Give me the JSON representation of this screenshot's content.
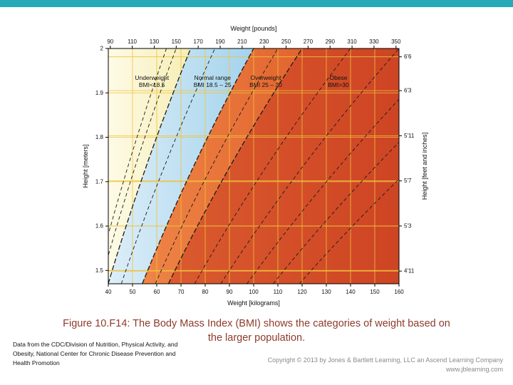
{
  "slide": {
    "top_bar_color": "#29a8b8",
    "caption_color": "#8d3b2b",
    "caption_line1": "Figure 10.F14: The Body Mass Index (BMI) shows the categories of weight based on",
    "caption_line2": "the larger population.",
    "source_text": "Data from the CDC/Division of Nutrition, Physical Activity, and Obesity, National Center for Chronic Disease Prevention and Health Promotion",
    "copyright_line1": "Copyright © 2013 by Jones & Bartlett Learning, LLC an Ascend Learning Company",
    "copyright_line2": "www.jblearning.com"
  },
  "chart_data": {
    "type": "area",
    "x_axis_top": {
      "label": "Weight [pounds]",
      "ticks": [
        90,
        110,
        130,
        150,
        170,
        190,
        210,
        230,
        250,
        270,
        290,
        310,
        330,
        350
      ]
    },
    "x_axis_bottom": {
      "label": "Weight [kilograms]",
      "range": [
        40,
        160
      ],
      "ticks": [
        40,
        50,
        60,
        70,
        80,
        90,
        100,
        110,
        120,
        130,
        140,
        150,
        160
      ]
    },
    "y_axis_left": {
      "label": "Height [meters]",
      "range": [
        1.47,
        2.0
      ],
      "ticks": [
        {
          "label": "2",
          "m": 2.0
        },
        {
          "label": "1.9",
          "m": 1.9
        },
        {
          "label": "1.8",
          "m": 1.8
        },
        {
          "label": "1.7",
          "m": 1.7
        },
        {
          "label": "1.6",
          "m": 1.6
        },
        {
          "label": "1.5",
          "m": 1.5
        }
      ]
    },
    "y_axis_right": {
      "label": "Height [feet and inches]",
      "ticks": [
        {
          "label": "6'6",
          "inches": 78
        },
        {
          "label": "6'3",
          "inches": 75
        },
        {
          "label": "5'11",
          "inches": 71
        },
        {
          "label": "5'7",
          "inches": 67
        },
        {
          "label": "5'3",
          "inches": 63
        },
        {
          "label": "4'11",
          "inches": 59
        }
      ]
    },
    "grid_color": "#eec23c",
    "regions": [
      {
        "name": "Underweight",
        "bmi_label": "BMI<18.5",
        "bmi_min": 0,
        "bmi_max": 18.5,
        "color_left": "#fffdf0",
        "color_right": "#f6eeb4",
        "label_kg": 58,
        "label_m": 1.929
      },
      {
        "name": "Normal range",
        "bmi_label": "BMI 18.5 – 25",
        "bmi_min": 18.5,
        "bmi_max": 25,
        "color_left": "#ddeef8",
        "color_right": "#a4d3ec",
        "label_kg": 83,
        "label_m": 1.929
      },
      {
        "name": "Overweight",
        "bmi_label": "BMI 25 – 30",
        "bmi_min": 25,
        "bmi_max": 30,
        "color_left": "#ee8546",
        "color_right": "#e2642f",
        "label_kg": 105,
        "label_m": 1.929
      },
      {
        "name": "Obese",
        "bmi_label": "BMI>30",
        "bmi_min": 30,
        "bmi_max": 300,
        "color_left": "#da5a2e",
        "color_right": "#cd4323",
        "label_kg": 135,
        "label_m": 1.929
      }
    ],
    "solid_boundaries": [
      18.5,
      25,
      30
    ],
    "dashed_boundaries": [
      16,
      17,
      21,
      27.5,
      35,
      40,
      45,
      50,
      55
    ]
  }
}
